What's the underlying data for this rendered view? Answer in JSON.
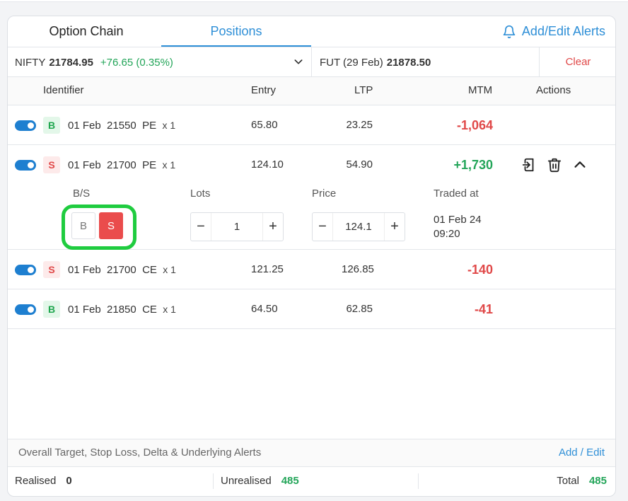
{
  "tabs": {
    "option_chain": "Option Chain",
    "positions": "Positions",
    "alerts": "Add/Edit Alerts"
  },
  "ticker": {
    "symbol": "NIFTY",
    "price": "21784.95",
    "change": "+76.65 (0.35%)",
    "future_label": "FUT (29 Feb)",
    "future_price": "21878.50",
    "clear": "Clear"
  },
  "headers": {
    "identifier": "Identifier",
    "entry": "Entry",
    "ltp": "LTP",
    "mtm": "MTM",
    "actions": "Actions"
  },
  "positions": [
    {
      "side": "B",
      "ident": "01 Feb  21550  PE",
      "qty": "x 1",
      "entry": "65.80",
      "ltp": "23.25",
      "mtm": "-1,064"
    },
    {
      "side": "S",
      "ident": "01 Feb  21700  PE",
      "qty": "x 1",
      "entry": "124.10",
      "ltp": "54.90",
      "mtm": "+1,730"
    },
    {
      "side": "S",
      "ident": "01 Feb  21700  CE",
      "qty": "x 1",
      "entry": "121.25",
      "ltp": "126.85",
      "mtm": "-140"
    },
    {
      "side": "B",
      "ident": "01 Feb  21850  CE",
      "qty": "x 1",
      "entry": "64.50",
      "ltp": "62.85",
      "mtm": "-41"
    }
  ],
  "expanded": {
    "bs_label": "B/S",
    "lots_label": "Lots",
    "price_label": "Price",
    "traded_label": "Traded at",
    "b_btn": "B",
    "s_btn": "S",
    "lots": "1",
    "price": "124.1",
    "minus": "−",
    "plus": "+",
    "traded_date": "01 Feb 24",
    "traded_time": "09:20"
  },
  "footer": {
    "alerts_text": "Overall Target, Stop Loss, Delta & Underlying Alerts",
    "add_edit": "Add / Edit",
    "realised_label": "Realised",
    "realised": "0",
    "unrealised_label": "Unrealised",
    "unrealised": "485",
    "total_label": "Total",
    "total": "485"
  },
  "colors": {
    "accent": "#2e8fd7",
    "positive": "#23a559",
    "negative": "#e04848",
    "highlight": "#1fcc3f"
  }
}
